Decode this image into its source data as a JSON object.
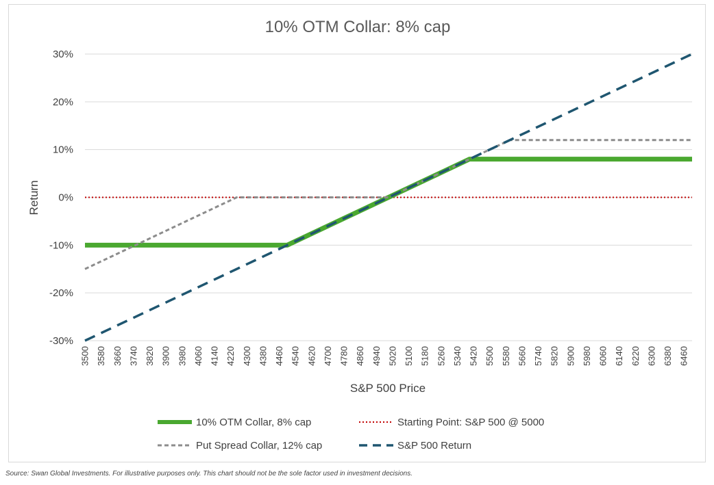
{
  "chart_data": {
    "type": "line",
    "title": "10% OTM Collar: 8% cap",
    "xlabel": "S&P 500 Price",
    "ylabel": "Return",
    "xlim": [
      3500,
      6500
    ],
    "ylim": [
      -0.3,
      0.3
    ],
    "x_ticks": [
      "3500",
      "3580",
      "3660",
      "3740",
      "3820",
      "3900",
      "3980",
      "4060",
      "4140",
      "4220",
      "4300",
      "4380",
      "4460",
      "4540",
      "4620",
      "4700",
      "4780",
      "4860",
      "4940",
      "5020",
      "5100",
      "5180",
      "5260",
      "5340",
      "5420",
      "5500",
      "5580",
      "5660",
      "5740",
      "5820",
      "5900",
      "5980",
      "6060",
      "6140",
      "6220",
      "6300",
      "6380",
      "6460"
    ],
    "y_ticks": [
      {
        "value": 0.3,
        "label": "30%"
      },
      {
        "value": 0.2,
        "label": "20%"
      },
      {
        "value": 0.1,
        "label": "10%"
      },
      {
        "value": 0.0,
        "label": "0%"
      },
      {
        "value": -0.1,
        "label": "-10%"
      },
      {
        "value": -0.2,
        "label": "-20%"
      },
      {
        "value": -0.3,
        "label": "-30%"
      }
    ],
    "grid": "horizontal",
    "legend_position": "bottom",
    "series": [
      {
        "key": "collar",
        "name": "10% OTM Collar, 8% cap",
        "color": "#4aa830",
        "style": "solid",
        "points": [
          [
            3500,
            -0.1
          ],
          [
            4500,
            -0.1
          ],
          [
            5400,
            0.08
          ],
          [
            6500,
            0.08
          ]
        ]
      },
      {
        "key": "start",
        "name": "Starting Point: S&P 500 @ 5000",
        "color": "#c00000",
        "style": "dotted",
        "points": [
          [
            3500,
            0.0
          ],
          [
            6500,
            0.0
          ]
        ]
      },
      {
        "key": "putspread",
        "name": "Put Spread Collar, 12% cap",
        "color": "#8c8c8c",
        "style": "short-dash",
        "points": [
          [
            3500,
            -0.15
          ],
          [
            4250,
            0.0
          ],
          [
            5000,
            0.0
          ],
          [
            5600,
            0.12
          ],
          [
            6500,
            0.12
          ]
        ]
      },
      {
        "key": "sp500",
        "name": "S&P 500 Return",
        "color": "#1f5670",
        "style": "long-dash",
        "points": [
          [
            3500,
            -0.3
          ],
          [
            6500,
            0.3
          ]
        ]
      }
    ]
  },
  "source_note": "Source: Swan Global Investments. For illustrative purposes only. This chart should not be the sole factor used in investment decisions."
}
